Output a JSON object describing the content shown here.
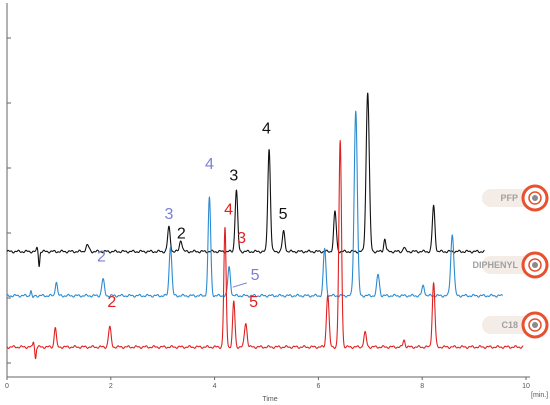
{
  "chart_data": {
    "type": "line",
    "title": "",
    "xlabel": "Time",
    "xunit": "[min.]",
    "xlim": [
      0,
      10
    ],
    "x_ticks": [
      {
        "value": 0,
        "label": "0"
      },
      {
        "value": 2,
        "label": "2"
      },
      {
        "value": 4,
        "label": "4"
      },
      {
        "value": 6,
        "label": "6"
      },
      {
        "value": 8,
        "label": "8"
      },
      {
        "value": 10,
        "label": "10"
      }
    ],
    "ylim": [
      0,
      1
    ],
    "grid": false,
    "legend_position": "right",
    "series": [
      {
        "name": "PFP",
        "color": "#111111",
        "baseline": 0.17,
        "x_end": 9.2,
        "artifact": {
          "x": 0.62,
          "up": 0.012,
          "down": 0.05
        },
        "peaks": [
          {
            "x": 1.55,
            "h": 0.022,
            "w": 0.03
          },
          {
            "x": 3.12,
            "h": 0.085,
            "w": 0.025
          },
          {
            "x": 3.35,
            "h": 0.04,
            "w": 0.025
          },
          {
            "x": 4.42,
            "h": 0.215,
            "w": 0.025
          },
          {
            "x": 5.05,
            "h": 0.36,
            "w": 0.025
          },
          {
            "x": 5.33,
            "h": 0.07,
            "w": 0.025
          },
          {
            "x": 6.32,
            "h": 0.14,
            "w": 0.025
          },
          {
            "x": 6.95,
            "h": 0.56,
            "w": 0.03
          },
          {
            "x": 7.28,
            "h": 0.045,
            "w": 0.02
          },
          {
            "x": 7.65,
            "h": 0.015,
            "w": 0.02
          },
          {
            "x": 8.22,
            "h": 0.16,
            "w": 0.025
          }
        ],
        "peak_labels": [
          {
            "text": "2",
            "x": 3.36,
            "y": 0.215,
            "color": "#111111"
          },
          {
            "text": "3",
            "x": 4.37,
            "y": 0.42,
            "color": "#111111"
          },
          {
            "text": "4",
            "x": 5.0,
            "y": 0.585,
            "color": "#111111"
          },
          {
            "text": "5",
            "x": 5.32,
            "y": 0.285,
            "color": "#111111"
          }
        ]
      },
      {
        "name": "DIPHENYL",
        "color": "#2b8bd0",
        "baseline": 0.015,
        "x_end": 9.55,
        "artifact": {
          "x": 0.5,
          "up": 0.02,
          "down": 0.01
        },
        "peaks": [
          {
            "x": 0.95,
            "h": 0.05,
            "w": 0.02
          },
          {
            "x": 1.85,
            "h": 0.058,
            "w": 0.025
          },
          {
            "x": 3.15,
            "h": 0.175,
            "w": 0.025
          },
          {
            "x": 3.9,
            "h": 0.345,
            "w": 0.025
          },
          {
            "x": 4.28,
            "h": 0.1,
            "w": 0.025
          },
          {
            "x": 6.12,
            "h": 0.165,
            "w": 0.025
          },
          {
            "x": 6.72,
            "h": 0.65,
            "w": 0.03
          },
          {
            "x": 7.15,
            "h": 0.075,
            "w": 0.025
          },
          {
            "x": 8.02,
            "h": 0.035,
            "w": 0.025
          },
          {
            "x": 8.58,
            "h": 0.215,
            "w": 0.03
          }
        ],
        "peak_labels": [
          {
            "text": "2",
            "x": 1.82,
            "y": 0.135,
            "color": "#7b7fd4"
          },
          {
            "text": "3",
            "x": 3.12,
            "y": 0.285,
            "color": "#7b7fd4"
          },
          {
            "text": "4",
            "x": 3.9,
            "y": 0.46,
            "color": "#7b7fd4"
          },
          {
            "text": "5",
            "x": 4.78,
            "y": 0.07,
            "color": "#7b7fd4"
          }
        ]
      },
      {
        "name": "C18",
        "color": "#e02020",
        "baseline": -0.165,
        "x_end": 9.95,
        "artifact": {
          "x": 0.55,
          "up": 0.02,
          "down": 0.04
        },
        "peaks": [
          {
            "x": 0.93,
            "h": 0.07,
            "w": 0.02
          },
          {
            "x": 1.98,
            "h": 0.07,
            "w": 0.025
          },
          {
            "x": 4.2,
            "h": 0.415,
            "w": 0.022
          },
          {
            "x": 4.37,
            "h": 0.16,
            "w": 0.022
          },
          {
            "x": 4.6,
            "h": 0.085,
            "w": 0.025
          },
          {
            "x": 6.18,
            "h": 0.185,
            "w": 0.025
          },
          {
            "x": 6.42,
            "h": 0.72,
            "w": 0.025
          },
          {
            "x": 6.9,
            "h": 0.05,
            "w": 0.025
          },
          {
            "x": 7.65,
            "h": 0.025,
            "w": 0.02
          },
          {
            "x": 8.22,
            "h": 0.225,
            "w": 0.025
          }
        ],
        "peak_labels": [
          {
            "text": "2",
            "x": 2.02,
            "y": -0.025,
            "color": "#e02020"
          },
          {
            "text": "4",
            "x": 4.27,
            "y": 0.3,
            "color": "#e02020"
          },
          {
            "text": "3",
            "x": 4.52,
            "y": 0.2,
            "color": "#e02020"
          },
          {
            "text": "5",
            "x": 4.75,
            "y": -0.025,
            "color": "#e02020"
          }
        ]
      }
    ]
  }
}
